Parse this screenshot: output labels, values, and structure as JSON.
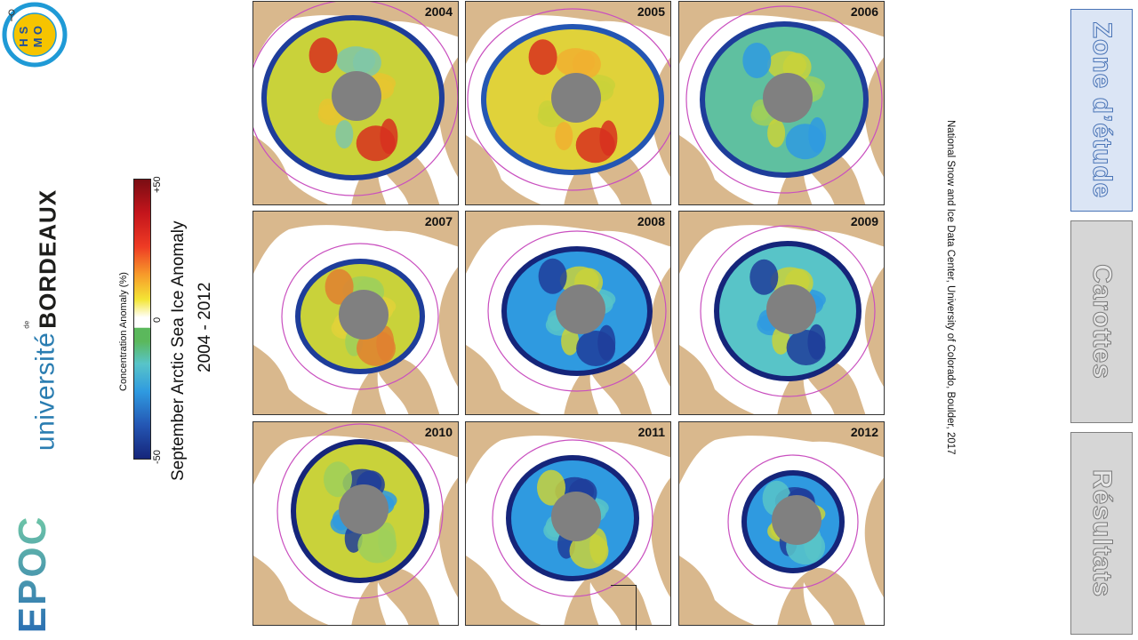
{
  "logos": {
    "shom": {
      "letters": [
        "S",
        "H",
        "O",
        "M"
      ],
      "colors": {
        "ring": "#1f9ad6",
        "center": "#f6c400"
      }
    },
    "universite": {
      "word": "université",
      "de": "de",
      "name": "BORDEAUX",
      "colors": {
        "word": "#2a7db1",
        "name": "#1d1d1b"
      }
    },
    "epoc": {
      "text": "EPOC",
      "colors": {
        "start": "#2a6fb3",
        "end": "#6ec6a7"
      }
    }
  },
  "figure": {
    "title": "September Arctic Sea Ice Anomaly",
    "years_range": "2004 - 2012",
    "colorbar": {
      "label": "Concentration Anomaly (%)",
      "ticks": [
        "+50",
        "0",
        "-50"
      ],
      "colors": [
        "#7a0d13",
        "#ee3b24",
        "#f3e535",
        "#ffffff",
        "#5bb85c",
        "#2f9ae0",
        "#15257a"
      ]
    },
    "panels": [
      {
        "year": "2004"
      },
      {
        "year": "2005"
      },
      {
        "year": "2006"
      },
      {
        "year": "2007"
      },
      {
        "year": "2008"
      },
      {
        "year": "2009"
      },
      {
        "year": "2010"
      },
      {
        "year": "2011"
      },
      {
        "year": "2012"
      }
    ],
    "colors": {
      "land": "#d9b88d",
      "pole_hole": "#808080",
      "median_line": "#c94fbf",
      "anomaly_low": "#1e3d9a",
      "anomaly_mid": "#c9d23a",
      "anomaly_high": "#d7301f"
    }
  },
  "credit": "National Snow and Ice Data Center, University of Colorado, Boulder, 2017",
  "nav": {
    "tabs": [
      {
        "label": "Zone d’étude",
        "active": true
      },
      {
        "label": "Carottes",
        "active": false
      },
      {
        "label": "Résultats",
        "active": false
      }
    ]
  }
}
